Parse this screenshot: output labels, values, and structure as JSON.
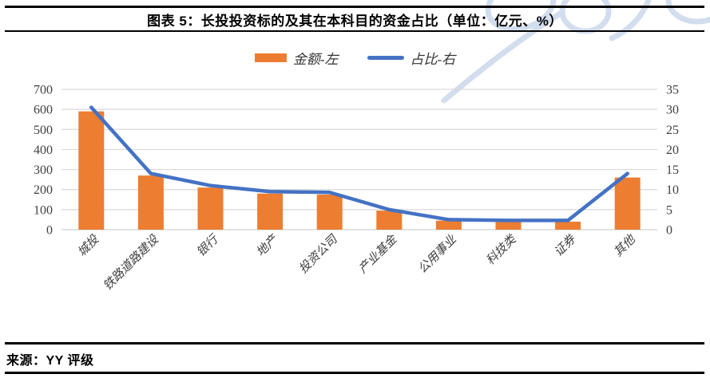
{
  "header": {
    "title": "图表 5：长投投资标的及其在本科目的资金占比（单位：亿元、%）"
  },
  "legend": {
    "items": [
      {
        "label": "金额-左",
        "swatch": "bar-swatch",
        "color": "#ED7D31"
      },
      {
        "label": "占比-右",
        "swatch": "line-swatch",
        "color": "#4472C4"
      }
    ]
  },
  "footer": {
    "source_label": "来源：YY 评级"
  },
  "colors": {
    "bar": "#ED7D31",
    "line": "#4472C4",
    "gridline": "#D9D9D9",
    "axis_text": "#404040",
    "rule": "#000000",
    "watermark": "#CBD8EC",
    "background": "#FFFFFF"
  },
  "chart_data": {
    "type": "bar",
    "subtype": "combo-bar-line",
    "title": "图表 5：长投投资标的及其在本科目的资金占比（单位：亿元、%）",
    "categories": [
      "城投",
      "铁路道路建设",
      "银行",
      "地产",
      "投资公司",
      "产业基金",
      "公用事业",
      "科技类",
      "证券",
      "其他"
    ],
    "series": [
      {
        "name": "金额-左",
        "type": "bar",
        "axis": "left",
        "unit": "亿元",
        "color": "#ED7D31",
        "values": [
          590,
          270,
          210,
          180,
          175,
          95,
          45,
          38,
          40,
          260
        ]
      },
      {
        "name": "占比-右",
        "type": "line",
        "axis": "right",
        "unit": "%",
        "color": "#4472C4",
        "values": [
          30.5,
          14,
          11,
          9.5,
          9.3,
          5,
          2.5,
          2.3,
          2.3,
          14
        ]
      }
    ],
    "left_axis": {
      "min": 0,
      "max": 700,
      "ticks": [
        0,
        100,
        200,
        300,
        400,
        500,
        600,
        700
      ]
    },
    "right_axis": {
      "min": 0,
      "max": 35,
      "ticks": [
        0,
        5,
        10,
        15,
        20,
        25,
        30,
        35
      ]
    },
    "grid": true,
    "legend_position": "top"
  }
}
